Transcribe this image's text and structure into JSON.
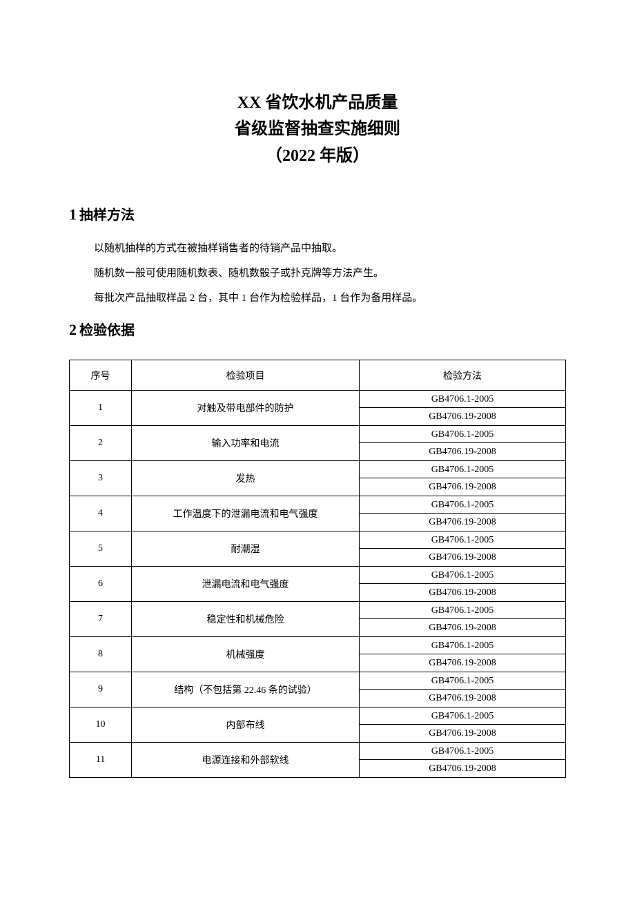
{
  "title": {
    "line1": "XX 省饮水机产品质量",
    "line2": "省级监督抽查实施细则",
    "line3": "（2022 年版）"
  },
  "section1": {
    "number": "1",
    "heading": "抽样方法",
    "paragraphs": [
      "以随机抽样的方式在被抽样销售者的待销产品中抽取。",
      "随机数一般可使用随机数表、随机数骰子或扑克牌等方法产生。",
      "每批次产品抽取样品 2 台，其中 1 台作为检验样品，1 台作为备用样品。"
    ]
  },
  "section2": {
    "number": "2",
    "heading": "检验依据"
  },
  "table": {
    "headers": {
      "col1": "序号",
      "col2": "检验项目",
      "col3": "检验方法"
    },
    "method_a": "GB4706.1-2005",
    "method_b": "GB4706.19-2008",
    "rows": [
      {
        "num": "1",
        "item": "对触及带电部件的防护"
      },
      {
        "num": "2",
        "item": "输入功率和电流"
      },
      {
        "num": "3",
        "item": "发热"
      },
      {
        "num": "4",
        "item": "工作温度下的泄漏电流和电气强度"
      },
      {
        "num": "5",
        "item": "耐潮湿"
      },
      {
        "num": "6",
        "item": "泄漏电流和电气强度"
      },
      {
        "num": "7",
        "item": "稳定性和机械危险"
      },
      {
        "num": "8",
        "item": "机械强度"
      },
      {
        "num": "9",
        "item": "结构（不包括第 22.46 条的试验）"
      },
      {
        "num": "10",
        "item": "内部布线"
      },
      {
        "num": "11",
        "item": "电源连接和外部软线"
      }
    ]
  }
}
